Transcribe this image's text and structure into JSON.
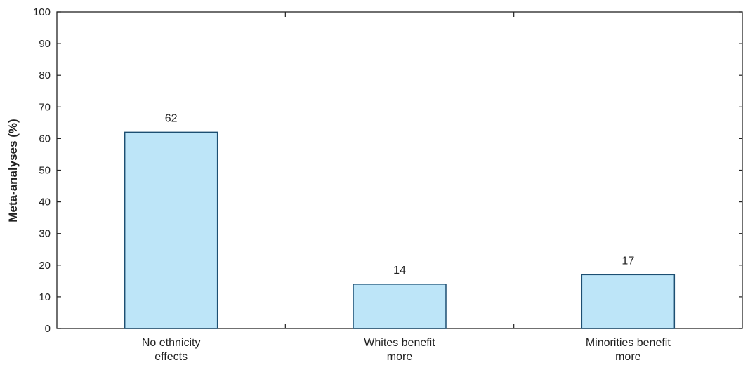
{
  "chart_data": {
    "type": "bar",
    "categories": [
      [
        "No ethnicity",
        "effects"
      ],
      [
        "Whites benefit",
        "more"
      ],
      [
        "Minorities benefit",
        "more"
      ]
    ],
    "values": [
      62,
      14,
      17
    ],
    "data_labels": [
      "62",
      "14",
      "17"
    ],
    "title": "",
    "xlabel": "",
    "ylabel": "Meta-analyses (%)",
    "ylim": [
      0,
      100
    ],
    "yticks": [
      0,
      10,
      20,
      30,
      40,
      50,
      60,
      70,
      80,
      90,
      100
    ],
    "ytick_labels": [
      "0",
      "10",
      "20",
      "30",
      "40",
      "50",
      "60",
      "70",
      "80",
      "90",
      "100"
    ],
    "grid": false,
    "legend": "none",
    "colors": {
      "bar_fill": "#bde5f8",
      "bar_stroke": "#1d4f72",
      "axis": "#222222"
    }
  }
}
